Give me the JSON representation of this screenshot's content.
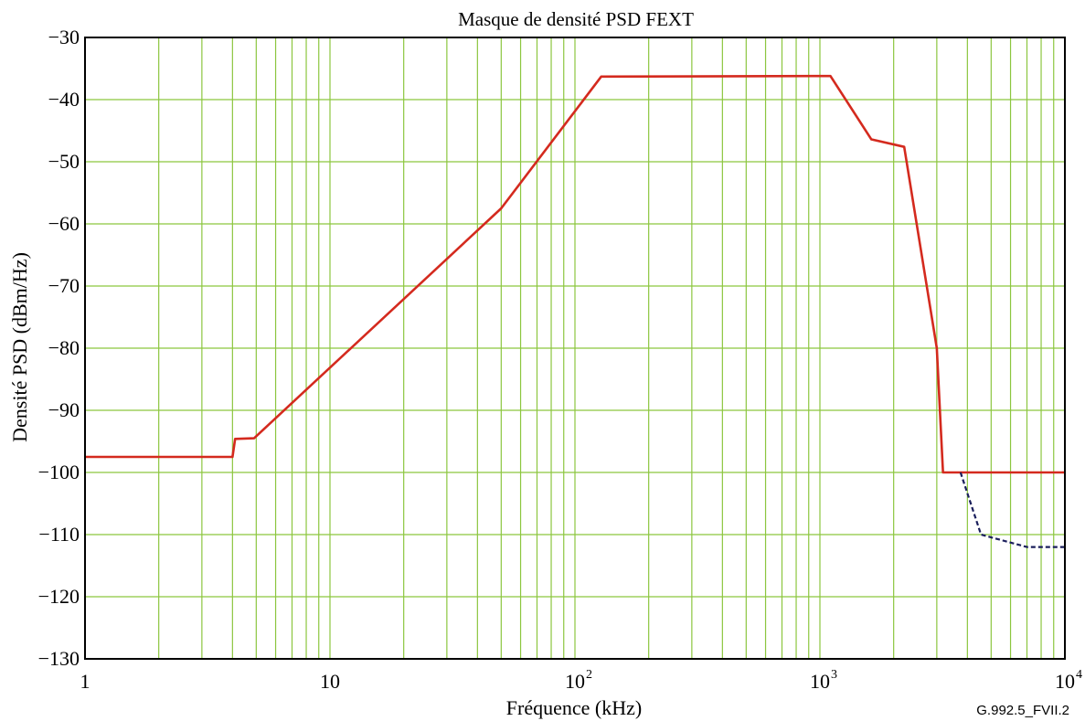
{
  "chart_data": {
    "type": "line",
    "title": "Masque de densité PSD FEXT",
    "xlabel": "Fréquence (kHz)",
    "ylabel": "Densité PSD (dBm/Hz)",
    "x_scale": "log",
    "xlim": [
      1,
      10000
    ],
    "ylim": [
      -130,
      -30
    ],
    "grid": true,
    "legend": "none",
    "x_ticks": [
      {
        "value": 1,
        "base": "1",
        "exp": ""
      },
      {
        "value": 10,
        "base": "10",
        "exp": ""
      },
      {
        "value": 100,
        "base": "10",
        "exp": "2"
      },
      {
        "value": 1000,
        "base": "10",
        "exp": "3"
      },
      {
        "value": 10000,
        "base": "10",
        "exp": "4"
      }
    ],
    "y_ticks": [
      {
        "value": -30,
        "label": "−30"
      },
      {
        "value": -40,
        "label": "−40"
      },
      {
        "value": -50,
        "label": "−50"
      },
      {
        "value": -60,
        "label": "−60"
      },
      {
        "value": -70,
        "label": "−70"
      },
      {
        "value": -80,
        "label": "−80"
      },
      {
        "value": -90,
        "label": "−90"
      },
      {
        "value": -100,
        "label": "−100"
      },
      {
        "value": -110,
        "label": "−110"
      },
      {
        "value": -120,
        "label": "−120"
      },
      {
        "value": -130,
        "label": "−130"
      }
    ],
    "series": [
      {
        "style": "solid",
        "color": "#d42a1e",
        "points": [
          [
            1,
            -97.5
          ],
          [
            4,
            -97.5
          ],
          [
            4.1,
            -94.6
          ],
          [
            4.9,
            -94.5
          ],
          [
            50,
            -57.5
          ],
          [
            128,
            -36.3
          ],
          [
            1104,
            -36.2
          ],
          [
            1622,
            -46.4
          ],
          [
            2208,
            -47.6
          ],
          [
            3000,
            -80
          ],
          [
            3180,
            -100
          ],
          [
            10000,
            -100
          ]
        ]
      },
      {
        "style": "dashed",
        "color": "#1b1f5c",
        "points": [
          [
            3750,
            -100
          ],
          [
            4545,
            -110
          ],
          [
            7000,
            -112
          ],
          [
            10000,
            -112
          ]
        ]
      }
    ],
    "figure_id": "G.992.5_FVII.2"
  },
  "colors": {
    "grid": "#8cc63f",
    "axis": "#000000",
    "background": "#ffffff"
  }
}
